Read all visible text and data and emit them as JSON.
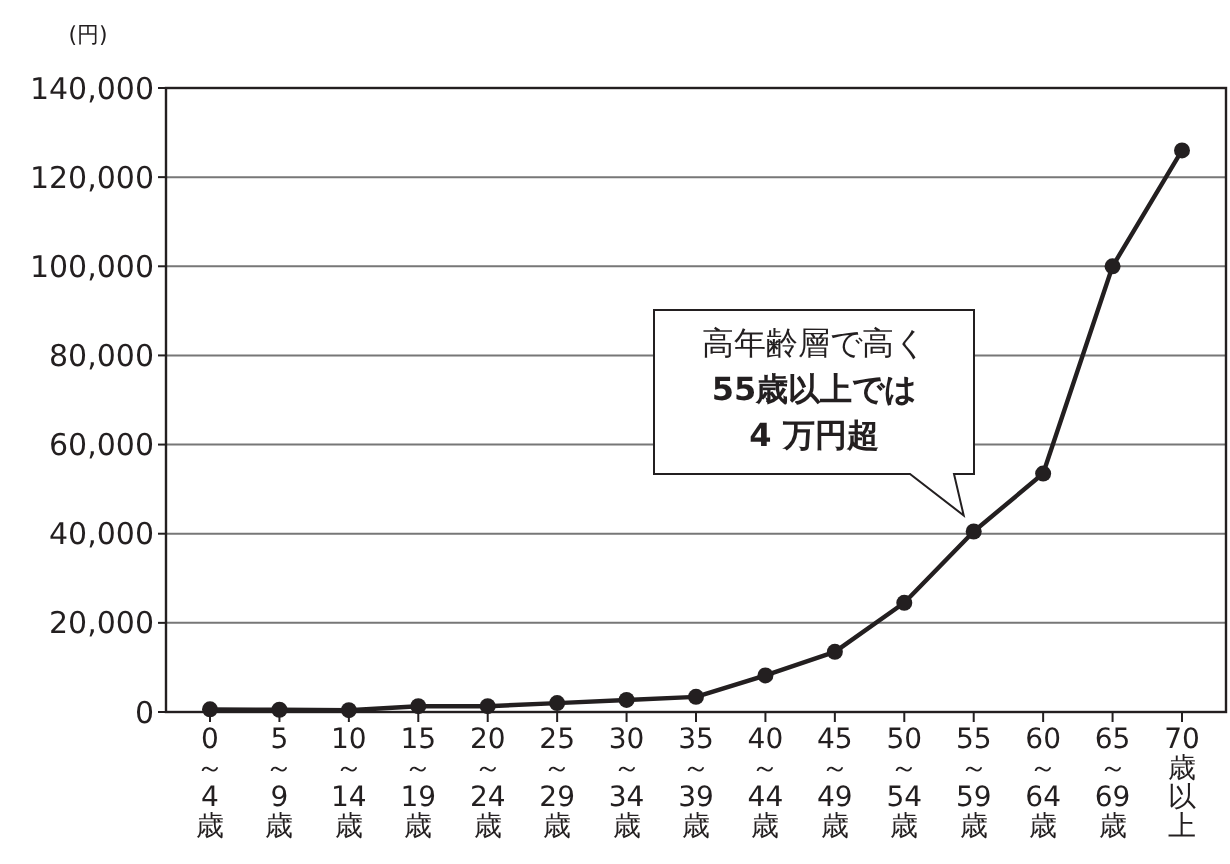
{
  "chart_data": {
    "type": "line",
    "ylabel": "(円)",
    "categories": [
      "0～4歳",
      "5～9歳",
      "10～14歳",
      "15～19歳",
      "20～24歳",
      "25～29歳",
      "30～34歳",
      "35～39歳",
      "40～44歳",
      "45～49歳",
      "50～54歳",
      "55～59歳",
      "60～64歳",
      "65～69歳",
      "70歳以上"
    ],
    "series": [
      {
        "color": "#231f20",
        "values": [
          600,
          500,
          400,
          1300,
          1300,
          2000,
          2700,
          3400,
          8200,
          13500,
          24500,
          40500,
          53500,
          100000,
          126000
        ]
      }
    ],
    "ylim": [
      0,
      140000
    ],
    "yticks": [
      {
        "value": 0,
        "label": "0"
      },
      {
        "value": 20000,
        "label": "20,000"
      },
      {
        "value": 40000,
        "label": "40,000"
      },
      {
        "value": 60000,
        "label": "60,000"
      },
      {
        "value": 80000,
        "label": "80,000"
      },
      {
        "value": 100000,
        "label": "100,000"
      },
      {
        "value": 120000,
        "label": "120,000"
      },
      {
        "value": 140000,
        "label": "140,000"
      }
    ],
    "grid": "y",
    "marker": "circle",
    "line_style": "solid",
    "annotations": [
      {
        "text": "高年齢層で高く\n55歳以上では\n4 万円超",
        "x": "55～59歳",
        "y": 40500
      }
    ]
  }
}
